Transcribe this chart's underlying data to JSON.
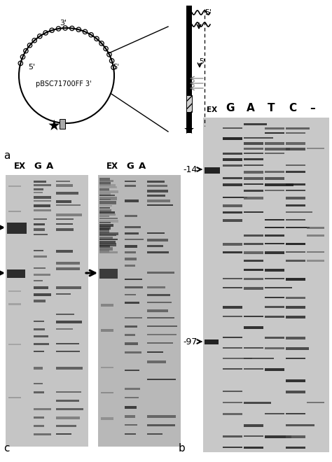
{
  "fig_width": 4.74,
  "fig_height": 6.6,
  "dpi": 100,
  "bg_color": "#ffffff",
  "label_a": "a",
  "label_b": "b",
  "label_c": "c",
  "plasmid_label": "pBSC71700FF 3'",
  "marker_14": "-14",
  "marker_97": "-97"
}
